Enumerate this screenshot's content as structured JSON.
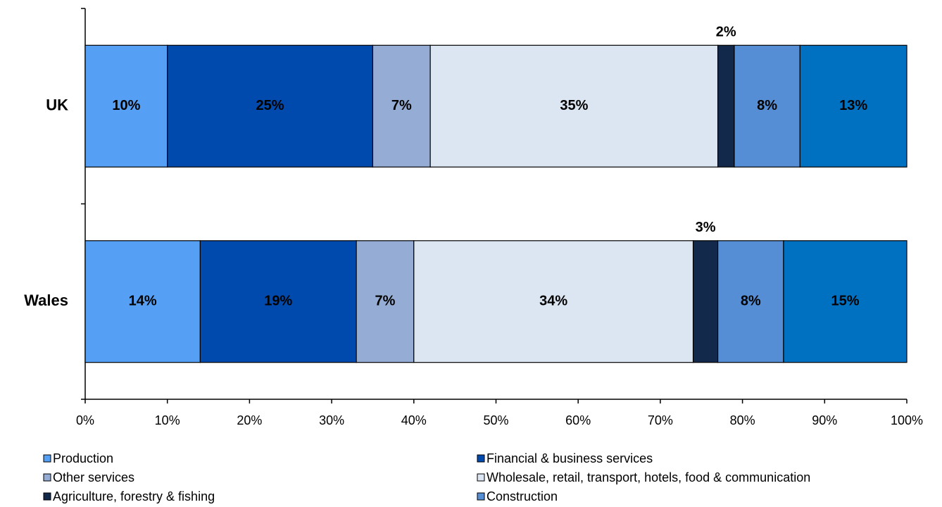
{
  "chart_data": {
    "type": "stacked-bar-horizontal",
    "categories": [
      "UK",
      "Wales"
    ],
    "series": [
      {
        "name": "Production",
        "color": "#55a0f5",
        "values": [
          10,
          14
        ],
        "value_labels": [
          "10%",
          "14%"
        ]
      },
      {
        "name": "Financial & business services",
        "color": "#004aad",
        "values": [
          25,
          19
        ],
        "value_labels": [
          "25%",
          "19%"
        ]
      },
      {
        "name": "Other services",
        "color": "#95acd4",
        "values": [
          7,
          7
        ],
        "value_labels": [
          "7%",
          "7%"
        ]
      },
      {
        "name": "Wholesale, retail, transport, hotels, food & communication",
        "color": "#dce6f2",
        "values": [
          35,
          34
        ],
        "value_labels": [
          "35%",
          "34%"
        ]
      },
      {
        "name": "Agriculture, forestry & fishing",
        "color": "#13294b",
        "values": [
          2,
          3
        ],
        "value_labels": [
          "2%",
          "3%"
        ]
      },
      {
        "name": "Construction",
        "color": "#558ed5",
        "values": [
          8,
          8
        ],
        "value_labels": [
          "8%",
          "8%"
        ]
      },
      {
        "name": null,
        "color": "#0070c0",
        "values": [
          13,
          15
        ],
        "value_labels": [
          "13%",
          "15%"
        ]
      }
    ],
    "xlim": [
      0,
      100
    ],
    "xticks": [
      {
        "value": 0,
        "label": "0%"
      },
      {
        "value": 10,
        "label": "10%"
      },
      {
        "value": 20,
        "label": "20%"
      },
      {
        "value": 30,
        "label": "30%"
      },
      {
        "value": 40,
        "label": "40%"
      },
      {
        "value": 50,
        "label": "50%"
      },
      {
        "value": 60,
        "label": "60%"
      },
      {
        "value": 70,
        "label": "70%"
      },
      {
        "value": 80,
        "label": "80%"
      },
      {
        "value": 90,
        "label": "90%"
      },
      {
        "value": 100,
        "label": "100%"
      }
    ],
    "grid": false
  }
}
